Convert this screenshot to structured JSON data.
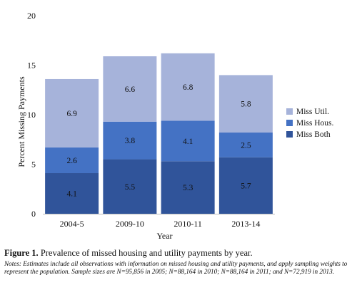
{
  "chart_data": {
    "type": "bar",
    "stacked": true,
    "categories": [
      "2004-5",
      "2009-10",
      "2010-11",
      "2013-14"
    ],
    "series": [
      {
        "name": "Miss Both",
        "values": [
          4.1,
          5.5,
          5.3,
          5.7
        ],
        "color": "#30549a"
      },
      {
        "name": "Miss Hous.",
        "values": [
          2.6,
          3.8,
          4.1,
          2.5
        ],
        "color": "#4472c4"
      },
      {
        "name": "Miss Util.",
        "values": [
          6.9,
          6.6,
          6.8,
          5.8
        ],
        "color": "#a6b3da"
      }
    ],
    "xlabel": "Year",
    "ylabel": "Percent Missing Payments",
    "ylim": [
      0,
      20
    ],
    "yticks": [
      0,
      5,
      10,
      15,
      20
    ],
    "grid": false,
    "legend_position": "right"
  },
  "caption": {
    "label": "Figure 1.",
    "title": " Prevalence of missed housing and utility payments by year.",
    "notes": "Notes: Estimates include all observations with information on missed housing and utility payments, and apply sampling weights to represent the population. Sample sizes are N=95,856 in 2005; N=88,164 in 2010; N=88,164 in 2011; and N=72,919 in 2013."
  }
}
